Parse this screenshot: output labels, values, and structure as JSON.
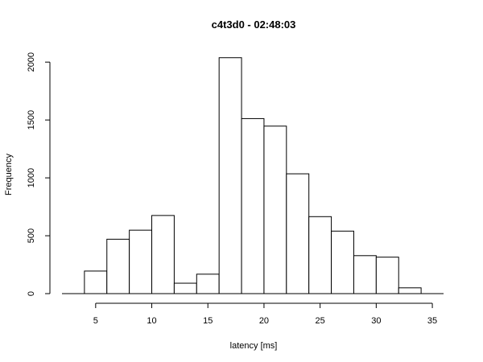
{
  "chart_data": {
    "type": "bar",
    "title": "c4t3d0 - 02:48:03",
    "xlabel": "latency [ms]",
    "ylabel": "Frequency",
    "xlim": [
      2,
      36
    ],
    "ylim": [
      0,
      2100
    ],
    "bins": [
      {
        "start": 2,
        "end": 4,
        "count": 0
      },
      {
        "start": 4,
        "end": 6,
        "count": 195
      },
      {
        "start": 6,
        "end": 8,
        "count": 470
      },
      {
        "start": 8,
        "end": 10,
        "count": 548
      },
      {
        "start": 10,
        "end": 12,
        "count": 675
      },
      {
        "start": 12,
        "end": 14,
        "count": 90
      },
      {
        "start": 14,
        "end": 16,
        "count": 168
      },
      {
        "start": 16,
        "end": 18,
        "count": 2038
      },
      {
        "start": 18,
        "end": 20,
        "count": 1512
      },
      {
        "start": 20,
        "end": 22,
        "count": 1447
      },
      {
        "start": 22,
        "end": 24,
        "count": 1035
      },
      {
        "start": 24,
        "end": 26,
        "count": 665
      },
      {
        "start": 26,
        "end": 28,
        "count": 540
      },
      {
        "start": 28,
        "end": 30,
        "count": 328
      },
      {
        "start": 30,
        "end": 32,
        "count": 315
      },
      {
        "start": 32,
        "end": 34,
        "count": 50
      },
      {
        "start": 34,
        "end": 36,
        "count": 0
      }
    ],
    "x_ticks": [
      5,
      10,
      15,
      20,
      25,
      30,
      35
    ],
    "x_tick_labels": [
      "5",
      "10",
      "15",
      "20",
      "25",
      "30",
      "35"
    ],
    "y_ticks": [
      0,
      500,
      1000,
      1500,
      2000
    ],
    "y_tick_labels": [
      "0",
      "500",
      "1000",
      "1500",
      "2000"
    ],
    "grid": false
  }
}
